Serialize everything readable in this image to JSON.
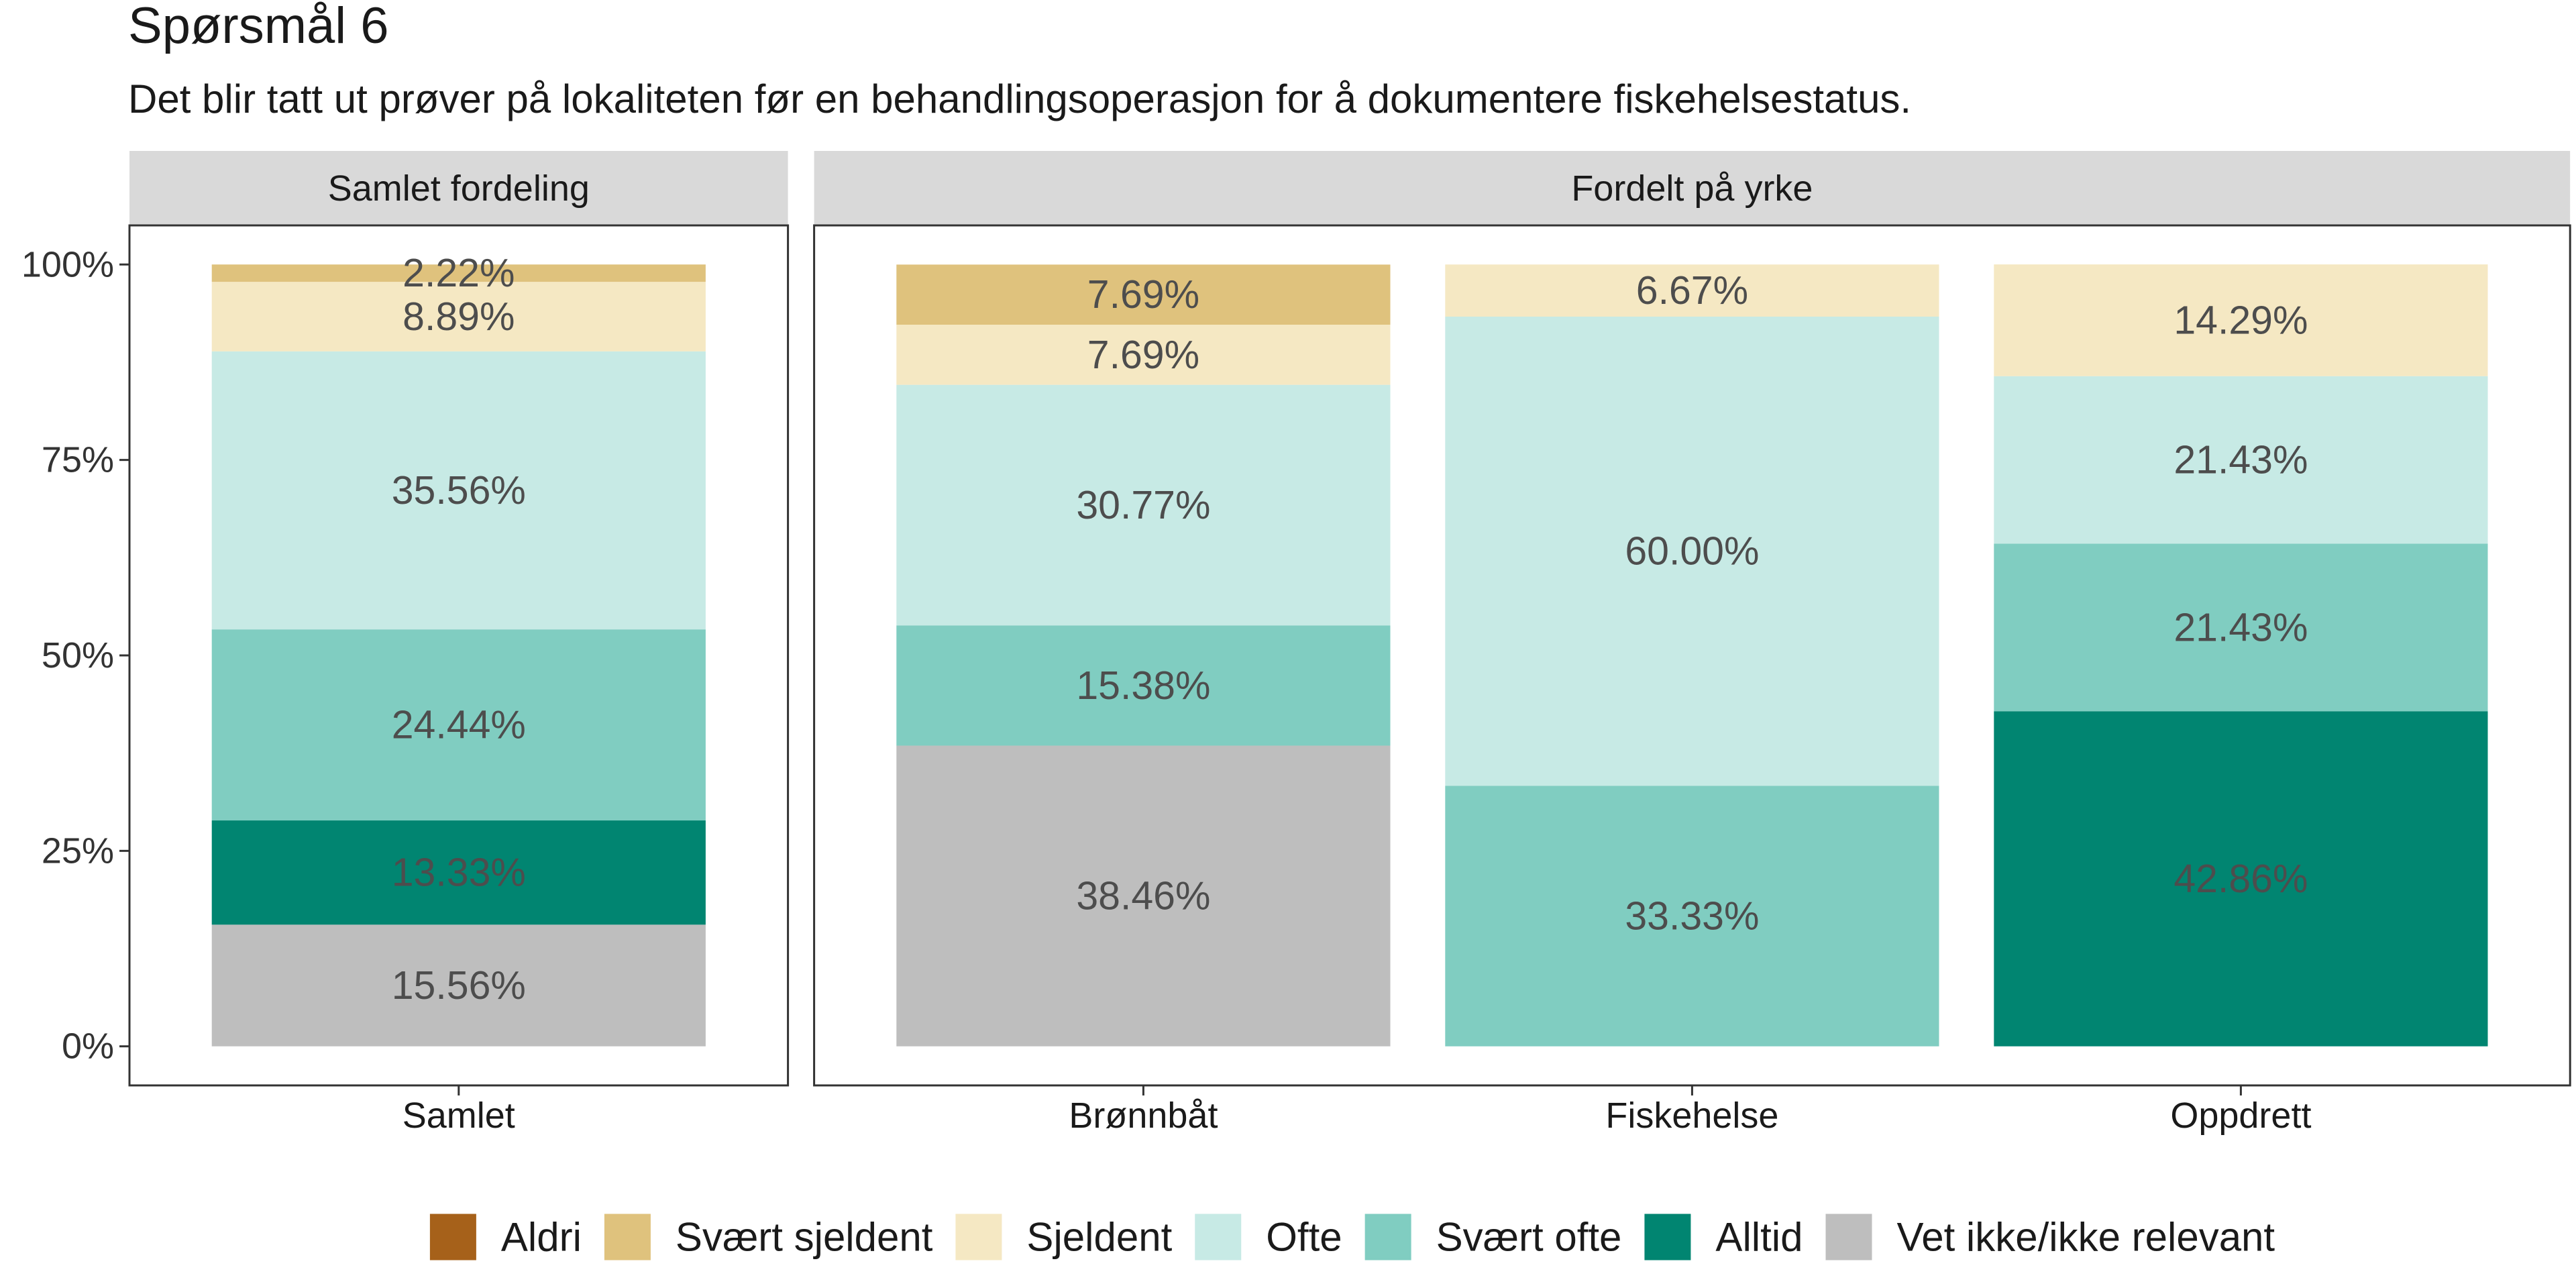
{
  "title": "Spørsmål 6",
  "subtitle": "Det blir tatt ut prøver på lokaliteten før en behandlingsoperasjon for å dokumentere fiskehelsestatus.",
  "chart_data": {
    "type": "bar",
    "stacked": true,
    "grid": false,
    "legend": "bottom",
    "ylim": [
      -5,
      105
    ],
    "yticks": [
      {
        "value": 0,
        "label": "0%"
      },
      {
        "value": 25,
        "label": "25%"
      },
      {
        "value": 50,
        "label": "50%"
      },
      {
        "value": 75,
        "label": "75%"
      },
      {
        "value": 100,
        "label": "100%"
      }
    ],
    "panels": [
      {
        "title": "Samlet fordeling",
        "categories": [
          "Samlet"
        ]
      },
      {
        "title": "Fordelt på yrke",
        "categories": [
          "Brønnbåt",
          "Fiskehelse",
          "Oppdrett"
        ]
      }
    ],
    "series": [
      {
        "name": "Aldri",
        "color": "#a6611a",
        "values": [
          null,
          null,
          null,
          null
        ],
        "value_labels": [
          null,
          null,
          null,
          null
        ]
      },
      {
        "name": "Svært sjeldent",
        "color": "#dfc27d",
        "values": [
          2.22,
          7.69,
          null,
          null
        ],
        "value_labels": [
          "2.22%",
          "7.69%",
          null,
          null
        ]
      },
      {
        "name": "Sjeldent",
        "color": "#f5e8c3",
        "values": [
          8.89,
          7.69,
          6.67,
          14.29
        ],
        "value_labels": [
          "8.89%",
          "7.69%",
          "6.67%",
          "14.29%"
        ]
      },
      {
        "name": "Ofte",
        "color": "#c7eae5",
        "values": [
          35.56,
          30.77,
          60.0,
          21.43
        ],
        "value_labels": [
          "35.56%",
          "30.77%",
          "60.00%",
          "21.43%"
        ]
      },
      {
        "name": "Svært ofte",
        "color": "#80cdc1",
        "values": [
          24.44,
          15.38,
          33.33,
          21.43
        ],
        "value_labels": [
          "24.44%",
          "15.38%",
          "33.33%",
          "21.43%"
        ]
      },
      {
        "name": "Alltid",
        "color": "#018571",
        "values": [
          13.33,
          null,
          null,
          42.86
        ],
        "value_labels": [
          "13.33%",
          null,
          null,
          "42.86%"
        ]
      },
      {
        "name": "Vet ikke/ikke relevant",
        "color": "#bebebe",
        "values": [
          15.56,
          38.46,
          null,
          null
        ],
        "value_labels": [
          "15.56%",
          "38.46%",
          null,
          null
        ]
      }
    ]
  }
}
